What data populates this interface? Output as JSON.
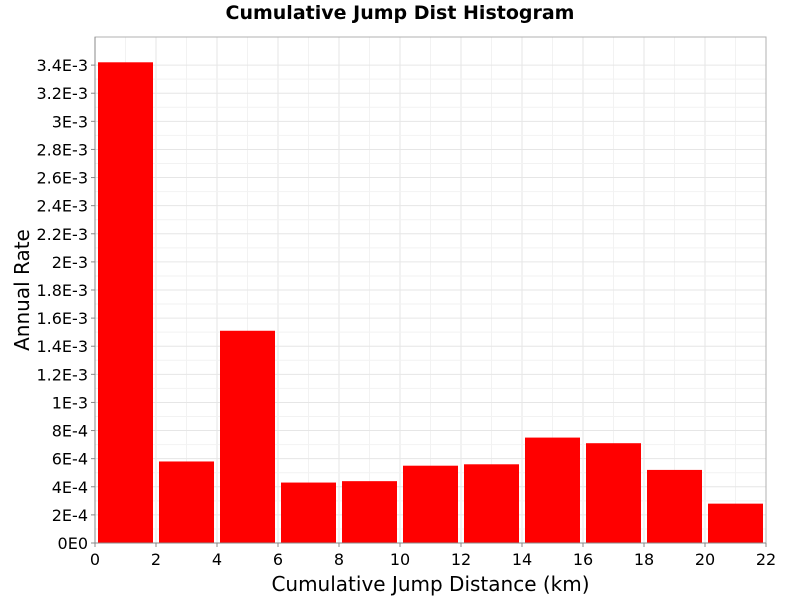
{
  "chart_data": {
    "type": "bar",
    "title": "Cumulative Jump Dist Histogram",
    "xlabel": "Cumulative Jump Distance (km)",
    "ylabel": "Annual Rate",
    "xlim": [
      0,
      22
    ],
    "ylim": [
      0,
      0.0036
    ],
    "x_ticks": [
      0,
      2,
      4,
      6,
      8,
      10,
      12,
      14,
      16,
      18,
      20,
      22
    ],
    "x_tick_labels": [
      "0",
      "2",
      "4",
      "6",
      "8",
      "10",
      "12",
      "14",
      "16",
      "18",
      "20",
      "22"
    ],
    "y_ticks": [
      0,
      0.0002,
      0.0004,
      0.0006,
      0.0008,
      0.001,
      0.0012,
      0.0014,
      0.0016,
      0.0018,
      0.002,
      0.0022,
      0.0024,
      0.0026,
      0.0028,
      0.003,
      0.0032,
      0.0034
    ],
    "y_tick_labels": [
      "0E0",
      "2E-4",
      "4E-4",
      "6E-4",
      "8E-4",
      "1E-3",
      "1.2E-3",
      "1.4E-3",
      "1.6E-3",
      "1.8E-3",
      "2E-3",
      "2.2E-3",
      "2.4E-3",
      "2.6E-3",
      "2.8E-3",
      "3E-3",
      "3.2E-3",
      "3.4E-3"
    ],
    "grid": true,
    "bin_width": 2,
    "bins": [
      {
        "x0": 0,
        "x1": 2,
        "value": 0.00342
      },
      {
        "x0": 2,
        "x1": 4,
        "value": 0.00058
      },
      {
        "x0": 4,
        "x1": 6,
        "value": 0.00151
      },
      {
        "x0": 6,
        "x1": 8,
        "value": 0.00043
      },
      {
        "x0": 8,
        "x1": 10,
        "value": 0.00044
      },
      {
        "x0": 10,
        "x1": 12,
        "value": 0.00055
      },
      {
        "x0": 12,
        "x1": 14,
        "value": 0.00056
      },
      {
        "x0": 14,
        "x1": 16,
        "value": 0.00075
      },
      {
        "x0": 16,
        "x1": 18,
        "value": 0.00071
      },
      {
        "x0": 18,
        "x1": 20,
        "value": 0.00052
      },
      {
        "x0": 20,
        "x1": 22,
        "value": 0.00028
      }
    ],
    "colors": {
      "bar": "#ff0000",
      "grid": "#e6e6e6",
      "plot_border": "#b0b0b0"
    }
  }
}
